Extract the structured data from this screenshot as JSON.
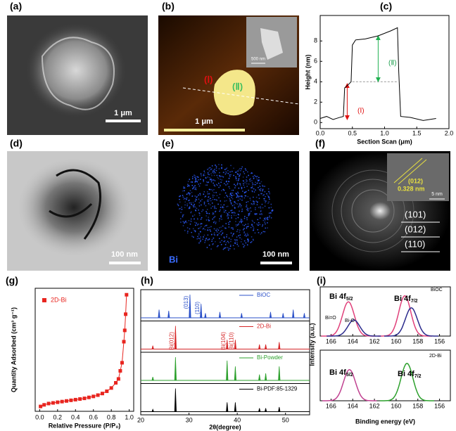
{
  "panels": {
    "a": {
      "label": "(a)",
      "scale": "1 μm"
    },
    "b": {
      "label": "(b)",
      "scale": "1 μm",
      "inset_scale": "500 nm",
      "marker_1": "(Ⅰ)",
      "marker_2": "(Ⅱ)"
    },
    "d": {
      "label": "(d)",
      "scale": "100 nm"
    },
    "e": {
      "label": "(e)",
      "element": "Bi",
      "scale": "100 nm"
    },
    "f": {
      "label": "(f)",
      "plane": "(012)",
      "spacing": "0.328 nm",
      "inset_scale": "5 nm",
      "rings": [
        "(101)",
        "(012)",
        "(110)"
      ]
    }
  },
  "chart_data": [
    {
      "type": "line",
      "label": "(c)",
      "x_label": "Section Scan (μm)",
      "y_label": "Height (nm)",
      "color": "#000000",
      "x": [
        0,
        0.1,
        0.2,
        0.3,
        0.36,
        0.38,
        0.45,
        0.48,
        0.5,
        0.55,
        0.7,
        0.9,
        1.1,
        1.2,
        1.22,
        1.25,
        1.4,
        1.6,
        1.8
      ],
      "values": [
        0.4,
        0.6,
        0.3,
        0.5,
        0.6,
        3.4,
        3.8,
        4.0,
        7.6,
        8.1,
        8.2,
        8.5,
        9.0,
        9.3,
        5,
        0.6,
        0.5,
        0.2,
        0.4
      ],
      "xlim": [
        0,
        2
      ],
      "xticks": [
        {
          "value": 0,
          "label": "0.0"
        },
        0.5,
        {
          "value": 1,
          "label": "1.0"
        },
        1.5,
        {
          "value": 2,
          "label": "2.0"
        }
      ],
      "ylim": [
        -0.6,
        10.5
      ],
      "yticks": [
        0,
        2,
        4,
        6,
        8
      ],
      "annotations": [
        "(Ⅰ)",
        "(Ⅱ)"
      ]
    },
    {
      "type": "scatter",
      "label": "(g)",
      "x_label": "Relative Pressure (P/P₀)",
      "y_label": "Quantity Adsorbed (cm³ g⁻¹)",
      "series": [
        {
          "name": "2D-Bi",
          "color": "#e8251f",
          "x": [
            0.01,
            0.05,
            0.1,
            0.15,
            0.2,
            0.25,
            0.3,
            0.35,
            0.4,
            0.45,
            0.5,
            0.55,
            0.6,
            0.65,
            0.7,
            0.75,
            0.8,
            0.85,
            0.88,
            0.9,
            0.92,
            0.94,
            0.95,
            0.96,
            0.97
          ],
          "values": [
            15,
            20,
            24,
            26,
            28,
            30,
            32,
            34,
            36,
            38,
            40,
            43,
            46,
            50,
            55,
            62,
            72,
            88,
            100,
            125,
            150,
            215,
            250,
            300,
            360
          ]
        }
      ],
      "xlim": [
        -0.05,
        1.05
      ],
      "xticks": [
        {
          "value": 0,
          "label": "0.0"
        },
        0.2,
        0.4,
        0.6,
        0.8,
        {
          "value": 1,
          "label": "1.0"
        }
      ],
      "ylim": [
        0,
        380
      ]
    },
    {
      "type": "stick",
      "label": "(h)",
      "x_label": "2θ(degree)",
      "series": [
        {
          "name": "BiOC",
          "color": "#2b50c8",
          "x": [
            23.8,
            25.8,
            30.2,
            32.5,
            33.4,
            36.4,
            40.9,
            46.9,
            49.5,
            51.6,
            53.9
          ],
          "values": [
            0.35,
            0.3,
            1,
            0.6,
            0.2,
            0.25,
            0.2,
            0.25,
            0.2,
            0.35,
            0.2
          ]
        },
        {
          "name": "2D-Bi",
          "color": "#d62728",
          "x": [
            22.5,
            27.2,
            37.9,
            39.6,
            44.6,
            45.9,
            48.7
          ],
          "values": [
            0.15,
            1,
            0.4,
            0.4,
            0.2,
            0.2,
            0.3
          ]
        },
        {
          "name": "Bi-Powder",
          "color": "#2ca02c",
          "x": [
            22.5,
            27.2,
            37.9,
            39.6,
            44.6,
            45.9,
            48.7
          ],
          "values": [
            0.15,
            1,
            0.85,
            0.6,
            0.25,
            0.3,
            0.6
          ]
        },
        {
          "name": "Bi-PDF:85-1329",
          "color": "#000000",
          "x": [
            22.5,
            27.2,
            37.9,
            39.6,
            44.6,
            45.9,
            48.7
          ],
          "values": [
            0.1,
            1,
            0.4,
            0.4,
            0.15,
            0.15,
            0.2
          ]
        }
      ],
      "xlim": [
        20,
        55
      ],
      "xticks": [
        20,
        30,
        40,
        50
      ],
      "ylim": [
        0,
        1.15
      ],
      "annotations": [
        "(013)",
        "(110)",
        "Bi(012)",
        "Bi(104)",
        "Bi(110)"
      ]
    },
    {
      "type": "xps",
      "label": "(i)",
      "y_label": "Intensity (a.u.)",
      "series": [
        {
          "color": "#e0407a",
          "x": [
            164.4,
            159.2
          ],
          "values": [
            0.85,
            1
          ]
        },
        {
          "color": "#2a2a8c",
          "x": [
            163.9,
            158.6
          ],
          "values": [
            0.4,
            0.7
          ]
        }
      ],
      "xlim": [
        167,
        155
      ],
      "xticks": [
        166,
        164,
        162,
        160,
        158,
        156
      ],
      "ylim": [
        0,
        1.15
      ],
      "annotations": [
        {
          "text": "Bi 4f",
          "sub": "5/2"
        },
        {
          "text": "Bi 4f",
          "sub": "7/2"
        },
        "Bi=O",
        "Bi-O",
        "BiOC"
      ]
    },
    {
      "type": "xps",
      "x_label": "Binding energy (eV)",
      "series": [
        {
          "color": "#c04090",
          "x": [
            164.3
          ],
          "values": [
            0.75
          ]
        },
        {
          "color": "#2ca02c",
          "x": [
            159.0
          ],
          "values": [
            0.9
          ]
        }
      ],
      "xlim": [
        167,
        155
      ],
      "xticks": [
        166,
        164,
        162,
        160,
        158,
        156
      ],
      "ylim": [
        0,
        1.15
      ],
      "annotations": [
        {
          "text": "Bi 4f",
          "sub": "5/2"
        },
        {
          "text": "Bi 4f",
          "sub": "7/2"
        },
        "2D-Bi"
      ]
    }
  ]
}
